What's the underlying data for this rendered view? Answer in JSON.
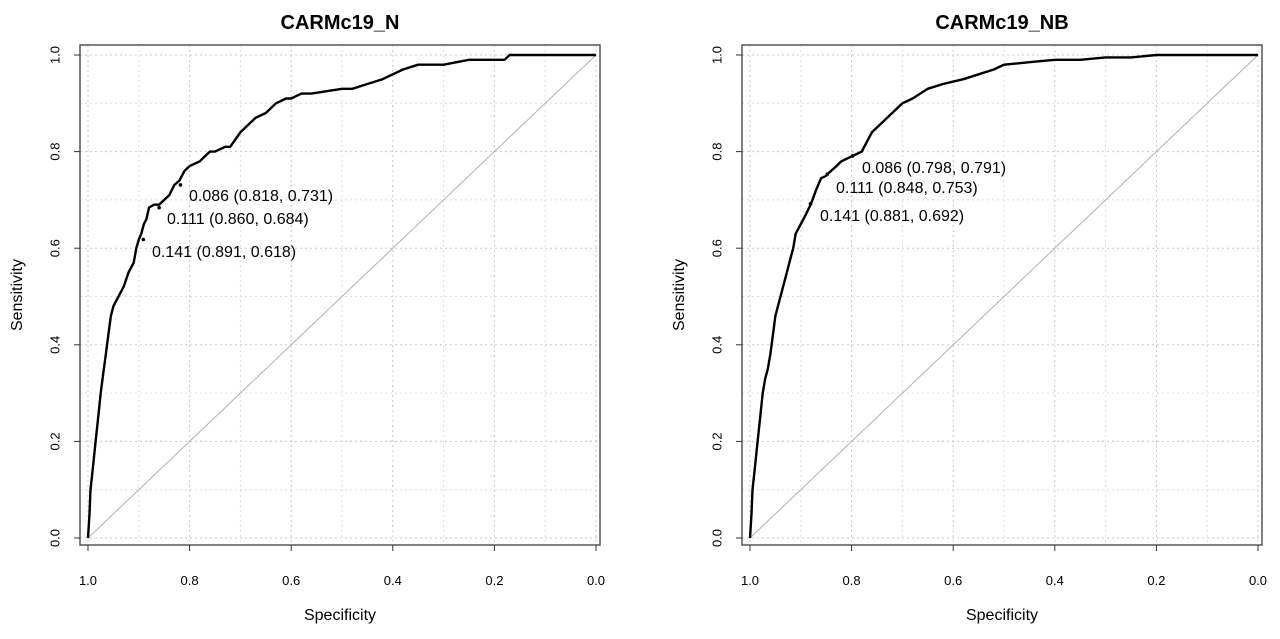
{
  "chart_data": [
    {
      "type": "line",
      "title": "CARMc19_N",
      "xlabel": "Specificity",
      "ylabel": "Sensitivity",
      "xlim": [
        1.0,
        0.0
      ],
      "ylim": [
        0.0,
        1.0
      ],
      "x_ticks": [
        "1.0",
        "0.8",
        "0.6",
        "0.4",
        "0.2",
        "0.0"
      ],
      "y_ticks": [
        "0.0",
        "0.2",
        "0.4",
        "0.6",
        "0.8",
        "1.0"
      ],
      "grid": true,
      "reference_line": [
        [
          1.0,
          0.0
        ],
        [
          0.0,
          1.0
        ]
      ],
      "series": [
        {
          "specificity": [
            1.0,
            0.997,
            0.995,
            0.99,
            0.985,
            0.98,
            0.975,
            0.97,
            0.965,
            0.96,
            0.955,
            0.95,
            0.945,
            0.94,
            0.93,
            0.92,
            0.91,
            0.905,
            0.9,
            0.895,
            0.89,
            0.885,
            0.88,
            0.87,
            0.86,
            0.85,
            0.84,
            0.83,
            0.82,
            0.81,
            0.8,
            0.78,
            0.77,
            0.76,
            0.75,
            0.73,
            0.72,
            0.7,
            0.69,
            0.67,
            0.65,
            0.63,
            0.61,
            0.6,
            0.58,
            0.56,
            0.5,
            0.48,
            0.45,
            0.42,
            0.4,
            0.38,
            0.35,
            0.3,
            0.25,
            0.2,
            0.18,
            0.17,
            0.16,
            0.1,
            0.05,
            0.0
          ],
          "sensitivity": [
            0.0,
            0.05,
            0.1,
            0.15,
            0.2,
            0.25,
            0.3,
            0.34,
            0.38,
            0.42,
            0.46,
            0.48,
            0.49,
            0.5,
            0.52,
            0.55,
            0.57,
            0.6,
            0.618,
            0.63,
            0.65,
            0.66,
            0.684,
            0.69,
            0.69,
            0.7,
            0.71,
            0.731,
            0.74,
            0.76,
            0.77,
            0.78,
            0.79,
            0.8,
            0.8,
            0.81,
            0.81,
            0.84,
            0.85,
            0.87,
            0.88,
            0.9,
            0.91,
            0.91,
            0.92,
            0.92,
            0.93,
            0.93,
            0.94,
            0.95,
            0.96,
            0.97,
            0.98,
            0.98,
            0.99,
            0.99,
            0.99,
            1.0,
            1.0,
            1.0,
            1.0,
            1.0
          ]
        }
      ],
      "annotations": [
        {
          "text": "0.086 (0.818, 0.731)",
          "specificity": 0.818,
          "sensitivity": 0.731
        },
        {
          "text": "0.111 (0.860, 0.684)",
          "specificity": 0.86,
          "sensitivity": 0.684
        },
        {
          "text": "0.141 (0.891, 0.618)",
          "specificity": 0.891,
          "sensitivity": 0.618
        }
      ]
    },
    {
      "type": "line",
      "title": "CARMc19_NB",
      "xlabel": "Specificity",
      "ylabel": "Sensitivity",
      "xlim": [
        1.0,
        0.0
      ],
      "ylim": [
        0.0,
        1.0
      ],
      "x_ticks": [
        "1.0",
        "0.8",
        "0.6",
        "0.4",
        "0.2",
        "0.0"
      ],
      "y_ticks": [
        "0.0",
        "0.2",
        "0.4",
        "0.6",
        "0.8",
        "1.0"
      ],
      "grid": true,
      "reference_line": [
        [
          1.0,
          0.0
        ],
        [
          0.0,
          1.0
        ]
      ],
      "series": [
        {
          "specificity": [
            1.0,
            0.997,
            0.995,
            0.99,
            0.985,
            0.98,
            0.975,
            0.97,
            0.965,
            0.96,
            0.955,
            0.95,
            0.94,
            0.93,
            0.92,
            0.915,
            0.91,
            0.9,
            0.89,
            0.88,
            0.87,
            0.86,
            0.85,
            0.848,
            0.83,
            0.82,
            0.81,
            0.798,
            0.78,
            0.77,
            0.76,
            0.74,
            0.72,
            0.7,
            0.68,
            0.65,
            0.62,
            0.6,
            0.58,
            0.55,
            0.52,
            0.5,
            0.45,
            0.4,
            0.35,
            0.3,
            0.25,
            0.2,
            0.15,
            0.1,
            0.05,
            0.0
          ],
          "sensitivity": [
            0.0,
            0.05,
            0.1,
            0.15,
            0.2,
            0.25,
            0.3,
            0.33,
            0.35,
            0.38,
            0.42,
            0.46,
            0.5,
            0.54,
            0.58,
            0.6,
            0.63,
            0.65,
            0.67,
            0.692,
            0.72,
            0.745,
            0.75,
            0.753,
            0.77,
            0.78,
            0.785,
            0.791,
            0.8,
            0.82,
            0.84,
            0.86,
            0.88,
            0.9,
            0.91,
            0.93,
            0.94,
            0.945,
            0.95,
            0.96,
            0.97,
            0.98,
            0.985,
            0.99,
            0.99,
            0.995,
            0.995,
            1.0,
            1.0,
            1.0,
            1.0,
            1.0
          ]
        }
      ],
      "annotations": [
        {
          "text": "0.086 (0.798, 0.791)",
          "specificity": 0.798,
          "sensitivity": 0.791
        },
        {
          "text": "0.111 (0.848, 0.753)",
          "specificity": 0.848,
          "sensitivity": 0.753
        },
        {
          "text": "0.141 (0.881, 0.692)",
          "specificity": 0.881,
          "sensitivity": 0.692
        }
      ]
    }
  ]
}
